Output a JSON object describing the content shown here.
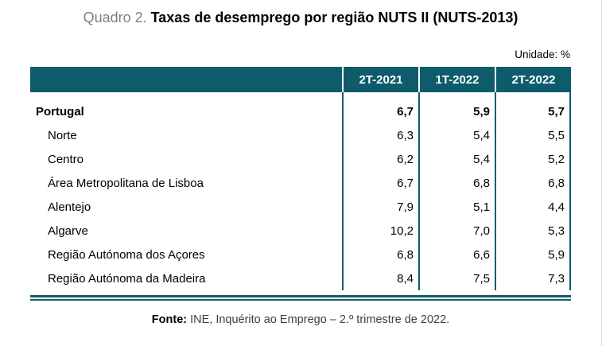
{
  "title": {
    "prefix": "Quadro 2.",
    "main": " Taxas de desemprego por região NUTS II (NUTS-2013)"
  },
  "unit_label": "Unidade: %",
  "table": {
    "columns": [
      "2T-2021",
      "1T-2022",
      "2T-2022"
    ],
    "rows": [
      {
        "region": "Portugal",
        "values": [
          "6,7",
          "5,9",
          "5,7"
        ]
      },
      {
        "region": "Norte",
        "values": [
          "6,3",
          "5,4",
          "5,5"
        ]
      },
      {
        "region": "Centro",
        "values": [
          "6,2",
          "5,4",
          "5,2"
        ]
      },
      {
        "region": "Área Metropolitana de Lisboa",
        "values": [
          "6,7",
          "6,8",
          "6,8"
        ]
      },
      {
        "region": "Alentejo",
        "values": [
          "7,9",
          "5,1",
          "4,4"
        ]
      },
      {
        "region": "Algarve",
        "values": [
          "10,2",
          "7,0",
          "5,3"
        ]
      },
      {
        "region": "Região Autónoma dos Açores",
        "values": [
          "6,8",
          "6,6",
          "5,9"
        ]
      },
      {
        "region": "Região Autónoma da Madeira",
        "values": [
          "8,4",
          "7,5",
          "7,3"
        ]
      }
    ]
  },
  "footer": {
    "label": "Fonte:",
    "text": "INE, Inquérito ao Emprego – 2.º trimestre de 2022."
  },
  "colors": {
    "teal": "#0e5c6b",
    "title_prefix_gray": "#7f7f7f",
    "footer_text_gray": "#404040"
  },
  "chart_data": {
    "type": "table",
    "title": "Quadro 2. Taxas de desemprego por região NUTS II (NUTS-2013)",
    "unit": "%",
    "columns": [
      "2T-2021",
      "1T-2022",
      "2T-2022"
    ],
    "rows": [
      {
        "region": "Portugal",
        "values": [
          6.7,
          5.9,
          5.7
        ]
      },
      {
        "region": "Norte",
        "values": [
          6.3,
          5.4,
          5.5
        ]
      },
      {
        "region": "Centro",
        "values": [
          6.2,
          5.4,
          5.2
        ]
      },
      {
        "region": "Área Metropolitana de Lisboa",
        "values": [
          6.7,
          6.8,
          6.8
        ]
      },
      {
        "region": "Alentejo",
        "values": [
          7.9,
          5.1,
          4.4
        ]
      },
      {
        "region": "Algarve",
        "values": [
          10.2,
          7.0,
          5.3
        ]
      },
      {
        "region": "Região Autónoma dos Açores",
        "values": [
          6.8,
          6.6,
          5.9
        ]
      },
      {
        "region": "Região Autónoma da Madeira",
        "values": [
          8.4,
          7.5,
          7.3
        ]
      }
    ],
    "source": "INE, Inquérito ao Emprego – 2.º trimestre de 2022."
  }
}
